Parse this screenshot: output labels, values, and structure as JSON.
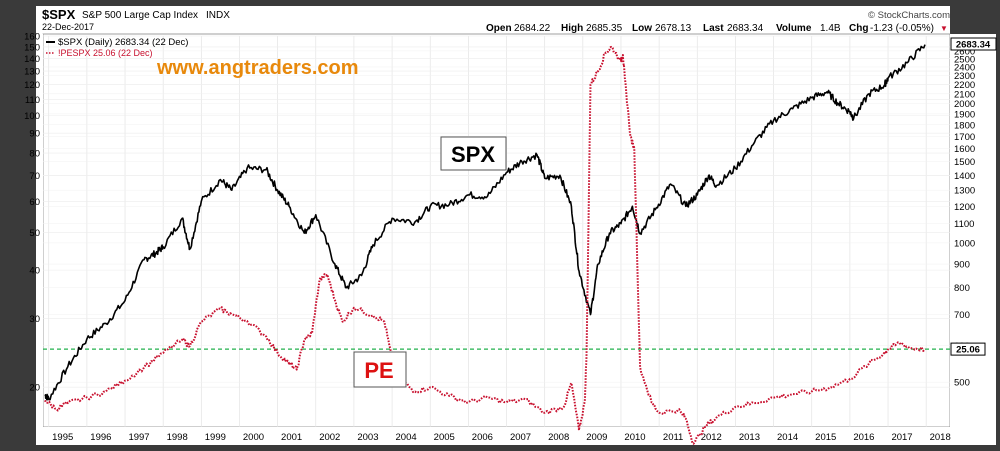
{
  "header": {
    "symbol": "$SPX",
    "name": "S&P 500 Large Cap Index",
    "exchange": "INDX",
    "date": "22-Dec-2017",
    "watermark": "© StockCharts.com",
    "open_label": "Open",
    "open": "2684.22",
    "high_label": "High",
    "high": "2685.35",
    "low_label": "Low",
    "low": "2678.13",
    "last_label": "Last",
    "last": "2683.34",
    "volume_label": "Volume",
    "volume": "1.4B",
    "chg_label": "Chg",
    "chg": "-1.23 (-0.05%)"
  },
  "legend": {
    "spx": "$SPX (Daily) 2683.34 (22 Dec)",
    "pe": "!PESPX 25.06 (22 Dec)"
  },
  "annotations": {
    "website": "www.angtraders.com",
    "spx_label": "SPX",
    "pe_label": "PE",
    "last_value": "2683.34",
    "pe_level_value": "25.06"
  },
  "colors": {
    "spx": "#000000",
    "pe": "#c8102e",
    "pe_level": "#22b14c",
    "website": "#e8890c",
    "frame": "#3a3a3a",
    "grid": "#dcdcdc"
  },
  "chart_data": {
    "type": "line",
    "x_ticks": [
      "1995",
      "1996",
      "1997",
      "1998",
      "1999",
      "2000",
      "2001",
      "2002",
      "2003",
      "2004",
      "2005",
      "2006",
      "2007",
      "2008",
      "2009",
      "2010",
      "2011",
      "2012",
      "2013",
      "2014",
      "2015",
      "2016",
      "2017",
      "2018"
    ],
    "left_axis_ticks": [
      20,
      30,
      40,
      50,
      60,
      70,
      80,
      90,
      100,
      110,
      120,
      130,
      140,
      150,
      160
    ],
    "right_axis_ticks": [
      500,
      600,
      700,
      800,
      900,
      1000,
      1100,
      1200,
      1300,
      1400,
      1500,
      1600,
      1700,
      1800,
      1900,
      2000,
      2100,
      2200,
      2300,
      2400,
      2500,
      2600
    ],
    "left_scale": "log",
    "right_scale": "log",
    "left_range": [
      15.8,
      160
    ],
    "right_range": [
      400,
      2800
    ],
    "x_range": [
      1994.85,
      2018.1
    ],
    "grid": true,
    "pe_reference_level": 25.06,
    "series": [
      {
        "name": "$SPX (Daily)",
        "axis": "right",
        "style": "solid",
        "x": [
          1994.9,
          1995.0,
          1995.5,
          1996.0,
          1996.5,
          1997.0,
          1997.5,
          1997.8,
          1998.0,
          1998.5,
          1998.7,
          1999.0,
          1999.5,
          1999.8,
          2000.2,
          2000.7,
          2001.0,
          2001.3,
          2001.7,
          2002.0,
          2002.5,
          2002.8,
          2003.2,
          2003.5,
          2004.0,
          2004.6,
          2005.0,
          2005.5,
          2006.0,
          2006.5,
          2007.0,
          2007.4,
          2007.8,
          2008.0,
          2008.4,
          2008.7,
          2008.9,
          2009.2,
          2009.4,
          2009.7,
          2010.0,
          2010.3,
          2010.5,
          2010.9,
          2011.3,
          2011.7,
          2012.0,
          2012.3,
          2012.5,
          2013.0,
          2013.5,
          2014.0,
          2014.5,
          2015.0,
          2015.4,
          2015.7,
          2016.0,
          2016.1,
          2016.5,
          2016.9,
          2017.0,
          2017.5,
          2017.97
        ],
        "values": [
          470,
          460,
          540,
          620,
          670,
          750,
          920,
          950,
          980,
          1130,
          970,
          1230,
          1370,
          1300,
          1450,
          1440,
          1300,
          1200,
          1050,
          1150,
          900,
          800,
          850,
          990,
          1130,
          1110,
          1200,
          1210,
          1270,
          1260,
          1420,
          1500,
          1550,
          1380,
          1400,
          1200,
          870,
          700,
          900,
          1050,
          1100,
          1200,
          1050,
          1180,
          1340,
          1200,
          1270,
          1400,
          1330,
          1450,
          1650,
          1840,
          1950,
          2060,
          2120,
          2000,
          1920,
          1860,
          2100,
          2190,
          2270,
          2450,
          2683
        ]
      },
      {
        "name": "!PESPX",
        "axis": "left",
        "style": "dotted",
        "x": [
          1994.9,
          1995.2,
          1995.5,
          1996.0,
          1996.5,
          1997.0,
          1997.5,
          1998.0,
          1998.5,
          1998.7,
          1999.0,
          1999.5,
          1999.8,
          2000.2,
          2000.7,
          2001.0,
          2001.3,
          2001.5,
          2001.7,
          2001.9,
          2002.1,
          2002.3,
          2002.5,
          2002.7,
          2003.0,
          2003.5,
          2003.8,
          2004.0,
          2004.2,
          2004.6,
          2005.0,
          2005.5,
          2006.0,
          2006.5,
          2007.0,
          2007.5,
          2008.0,
          2008.5,
          2008.7,
          2008.9,
          2009.05,
          2009.1,
          2009.2,
          2009.4,
          2009.6,
          2009.75,
          2010.0,
          2010.05,
          2010.1,
          2010.25,
          2010.35,
          2010.5,
          2010.8,
          2011.0,
          2011.5,
          2011.7,
          2011.9,
          2012.2,
          2012.5,
          2013.0,
          2013.5,
          2014.0,
          2014.5,
          2015.0,
          2015.5,
          2016.0,
          2016.5,
          2016.9,
          2017.0,
          2017.3,
          2017.6,
          2017.97
        ],
        "values": [
          18.5,
          17.6,
          18.2,
          18.8,
          19.5,
          20.8,
          22.5,
          24.5,
          26.5,
          25.5,
          29.5,
          31.8,
          30.8,
          29.6,
          27.0,
          24.5,
          23.0,
          22.2,
          26.5,
          27.5,
          37.8,
          39.0,
          33.5,
          29.5,
          32.0,
          30.6,
          29.5,
          23.5,
          21.0,
          19.5,
          20.0,
          19.0,
          18.3,
          18.8,
          18.3,
          18.6,
          17.2,
          17.8,
          20.5,
          15.5,
          18.3,
          24.8,
          120,
          130,
          145,
          150,
          138,
          143,
          125,
          88,
          82,
          22.5,
          18.3,
          17.2,
          17.5,
          16.6,
          14.3,
          15.8,
          16.7,
          17.8,
          18.2,
          18.8,
          19.2,
          19.5,
          20.0,
          21.0,
          23.0,
          24.5,
          25.0,
          26.0,
          25.2,
          25.06
        ]
      }
    ]
  }
}
